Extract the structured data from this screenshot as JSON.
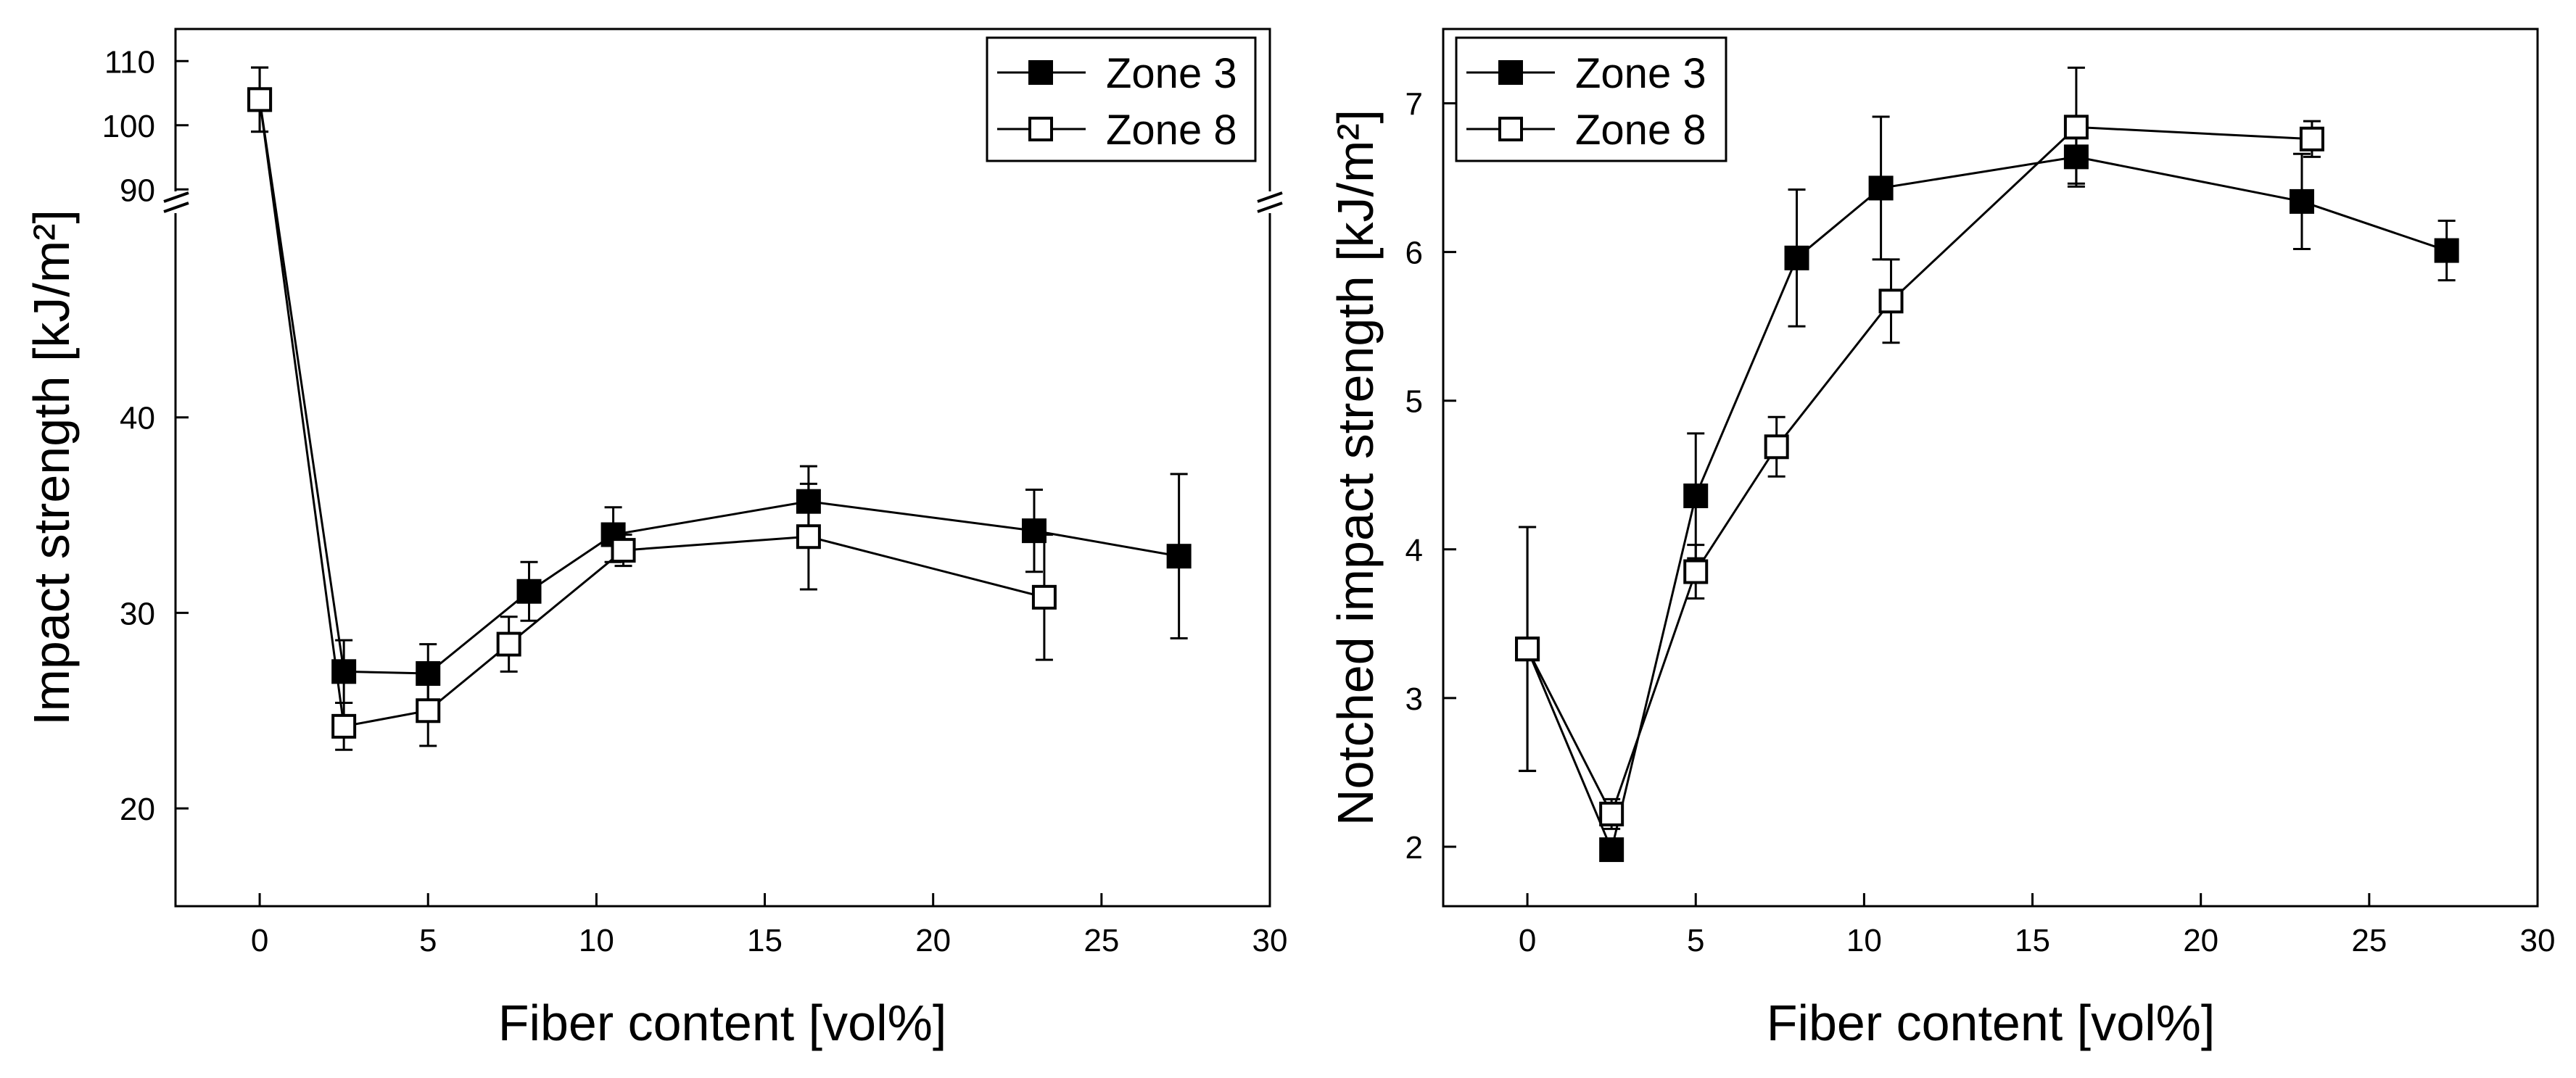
{
  "chart_data": [
    {
      "type": "line",
      "xlabel": "Fiber content [vol%]",
      "ylabel": "Impact strength [kJ/m²]",
      "xlim": [
        -2.5,
        30
      ],
      "xticks": [
        0,
        5,
        10,
        15,
        20,
        25,
        30
      ],
      "y_axis_break": {
        "lower_range": [
          15,
          51
        ],
        "upper_range": [
          88,
          115
        ]
      },
      "yticks_lower": [
        20,
        30,
        40
      ],
      "yticks_upper": [
        90,
        100,
        110
      ],
      "legend": {
        "position": "top-right",
        "entries": [
          "Zone 3",
          "Zone 8"
        ]
      },
      "series": [
        {
          "name": "Zone 3",
          "marker": "filled-square",
          "x": [
            0,
            2.5,
            5,
            8,
            10.5,
            16.3,
            23,
            27.3
          ],
          "y": [
            104,
            27,
            26.9,
            31.1,
            34,
            35.7,
            34.2,
            32.9
          ],
          "err": [
            5,
            1.6,
            1.5,
            1.5,
            1.4,
            1.8,
            2.1,
            4.2
          ]
        },
        {
          "name": "Zone 8",
          "marker": "open-square",
          "x": [
            0,
            2.5,
            5,
            7.4,
            10.8,
            16.3,
            23.3
          ],
          "y": [
            104,
            24.2,
            25,
            28.4,
            33.2,
            33.9,
            30.8
          ],
          "err": [
            5,
            1.2,
            1.8,
            1.4,
            0.8,
            2.7,
            3.2
          ]
        }
      ]
    },
    {
      "type": "line",
      "xlabel": "Fiber content [vol%]",
      "ylabel": "Notched impact strength [kJ/m²]",
      "xlim": [
        -2.5,
        30
      ],
      "ylim": [
        1.6,
        7.5
      ],
      "xticks": [
        0,
        5,
        10,
        15,
        20,
        25,
        30
      ],
      "yticks": [
        2,
        3,
        4,
        5,
        6,
        7
      ],
      "legend": {
        "position": "top-left",
        "entries": [
          "Zone 3",
          "Zone 8"
        ]
      },
      "series": [
        {
          "name": "Zone 3",
          "marker": "filled-square",
          "x": [
            0,
            2.5,
            5,
            8,
            10.5,
            16.3,
            23,
            27.3
          ],
          "y": [
            3.33,
            1.98,
            4.36,
            5.96,
            6.43,
            6.64,
            6.34,
            6.01
          ],
          "err": [
            0.82,
            0.05,
            0.42,
            0.46,
            0.48,
            0.18,
            0.32,
            0.2
          ]
        },
        {
          "name": "Zone 8",
          "marker": "open-square",
          "x": [
            0,
            2.5,
            5,
            7.4,
            10.8,
            16.3,
            23.3
          ],
          "y": [
            3.33,
            2.22,
            3.85,
            4.69,
            5.67,
            6.84,
            6.76
          ],
          "err": [
            0.82,
            0.1,
            0.18,
            0.2,
            0.28,
            0.4,
            0.12
          ]
        }
      ]
    }
  ]
}
